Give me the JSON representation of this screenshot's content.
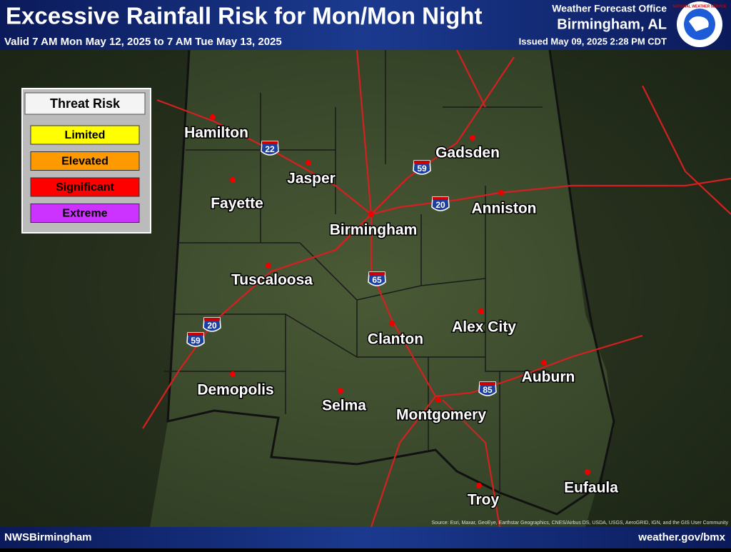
{
  "header": {
    "title": "Excessive Rainfall Risk for Mon/Mon Night",
    "valid": "Valid 7 AM Mon May 12, 2025 to 7 AM Tue May 13, 2025",
    "office": "Weather Forecast Office",
    "office_city": "Birmingham, AL",
    "issued": "Issued May 09, 2025 2:28 PM CDT",
    "logo_text": "NATIONAL WEATHER SERVICE"
  },
  "legend": {
    "title": "Threat Risk",
    "items": [
      {
        "label": "Limited",
        "color": "#ffff00"
      },
      {
        "label": "Elevated",
        "color": "#ff9900"
      },
      {
        "label": "Significant",
        "color": "#ff0000"
      },
      {
        "label": "Extreme",
        "color": "#cc33ff"
      }
    ]
  },
  "cities": [
    "Hamilton",
    "Jasper",
    "Gadsden",
    "Fayette",
    "Anniston",
    "Birmingham",
    "Tuscaloosa",
    "Alex City",
    "Clanton",
    "Auburn",
    "Demopolis",
    "Selma",
    "Montgomery",
    "Troy",
    "Eufaula"
  ],
  "interstates": [
    "22",
    "59",
    "20",
    "65",
    "20",
    "59",
    "85"
  ],
  "credit": "Source: Esri, Maxar, GeoEye, Earthstar Geographics, CNES/Airbus DS, USDA, USGS, AeroGRID, IGN, and the GIS User Community",
  "footer": {
    "left": "NWSBirmingham",
    "right": "weather.gov/bmx"
  }
}
